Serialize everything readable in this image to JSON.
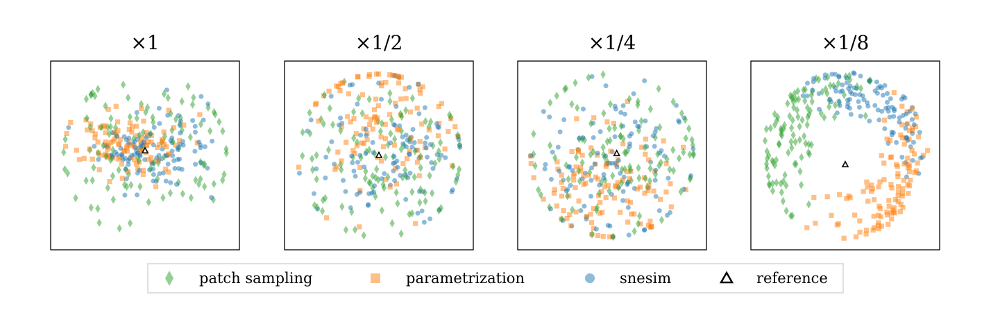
{
  "chart_data": {
    "type": "scatter",
    "panels": [
      {
        "title": "×1",
        "seed": 11,
        "shape": "cluster",
        "reference": [
          0.0,
          0.05
        ]
      },
      {
        "title": "×1/2",
        "seed": 23,
        "shape": "spread",
        "reference": [
          0.0,
          0.0
        ]
      },
      {
        "title": "×1/4",
        "seed": 37,
        "shape": "spread_wide",
        "reference": [
          0.05,
          0.02
        ]
      },
      {
        "title": "×1/8",
        "seed": 53,
        "shape": "ring",
        "reference": [
          0.0,
          -0.1
        ]
      }
    ],
    "series": [
      {
        "name": "patch sampling",
        "marker": "diamond",
        "color": "#2ca02c",
        "count": 110
      },
      {
        "name": "parametrization",
        "marker": "square",
        "color": "#ff7f0e",
        "count": 110
      },
      {
        "name": "snesim",
        "marker": "circle",
        "color": "#1f77b4",
        "count": 110
      },
      {
        "name": "reference",
        "marker": "triangle",
        "color": "#000000",
        "count": 1
      }
    ],
    "axes": {
      "xticks": false,
      "yticks": false,
      "grid": false
    },
    "legend": {
      "placement": "bottom",
      "columns": 4
    }
  }
}
